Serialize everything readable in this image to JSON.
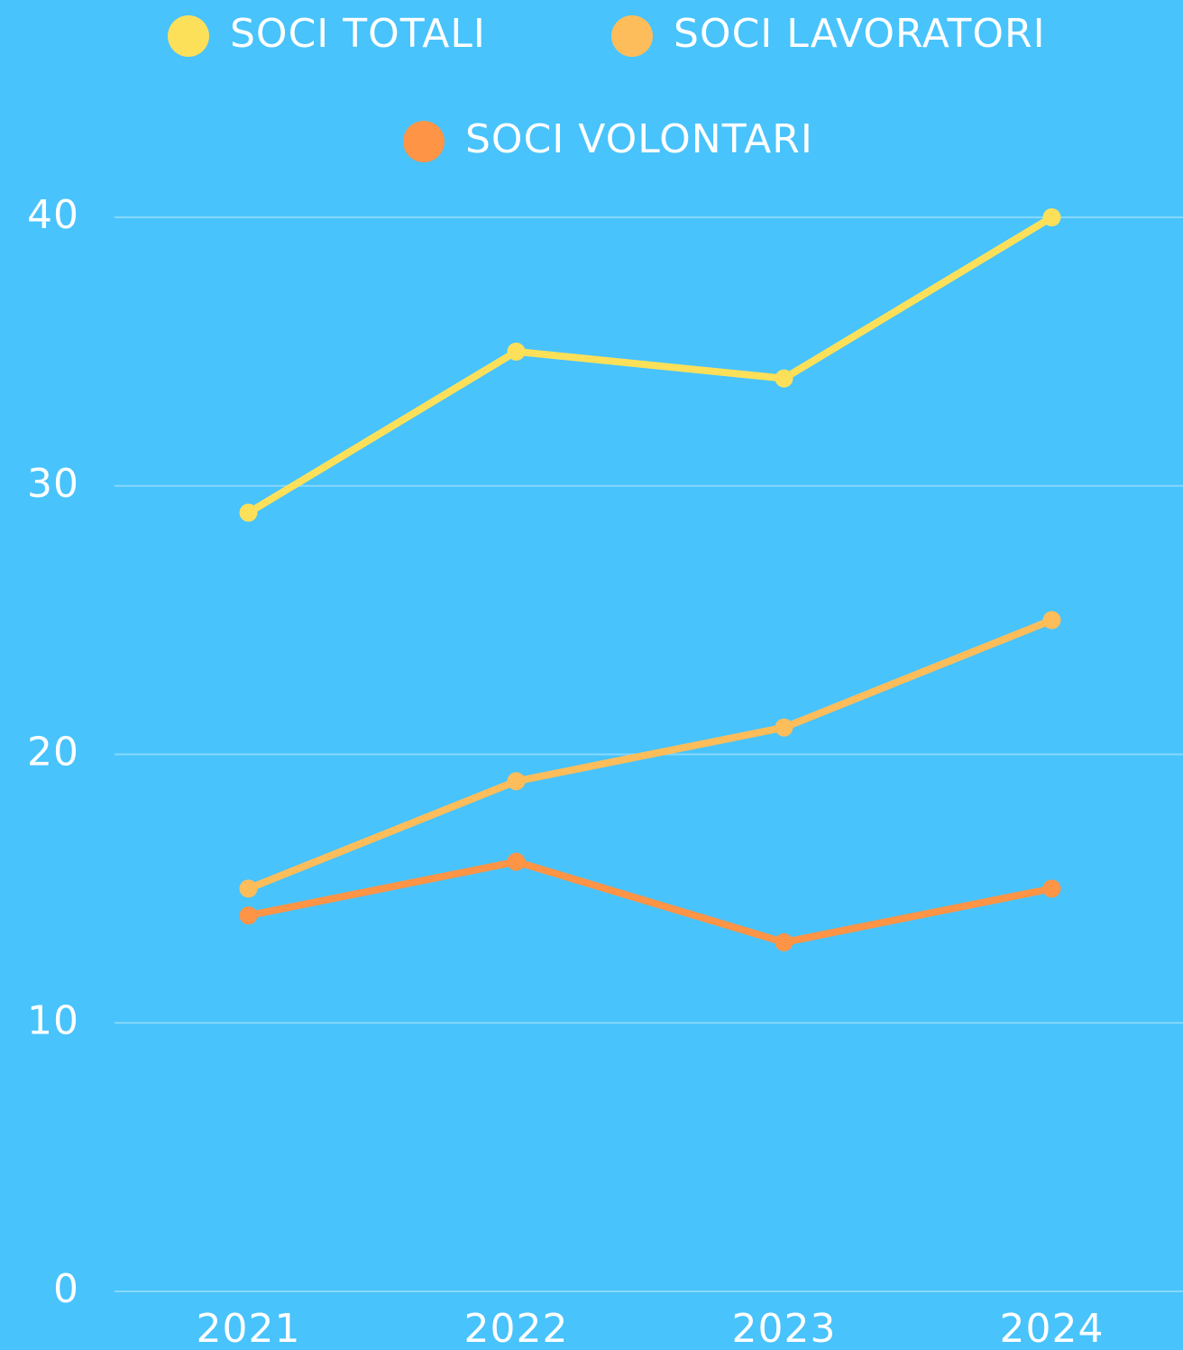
{
  "chart_data": {
    "type": "line",
    "categories": [
      "2021",
      "2022",
      "2023",
      "2024"
    ],
    "series": [
      {
        "name": "SOCI TOTALI",
        "color": "#fde05a",
        "values": [
          29,
          35,
          34,
          40
        ]
      },
      {
        "name": "SOCI LAVORATORI",
        "color": "#fdbd5a",
        "values": [
          15,
          19,
          21,
          25
        ]
      },
      {
        "name": "SOCI VOLONTARI",
        "color": "#fd9446",
        "values": [
          14,
          16,
          13,
          15
        ]
      }
    ],
    "ylim": [
      0,
      40
    ],
    "yticks": [
      0,
      10,
      20,
      30,
      40
    ],
    "grid": true
  }
}
